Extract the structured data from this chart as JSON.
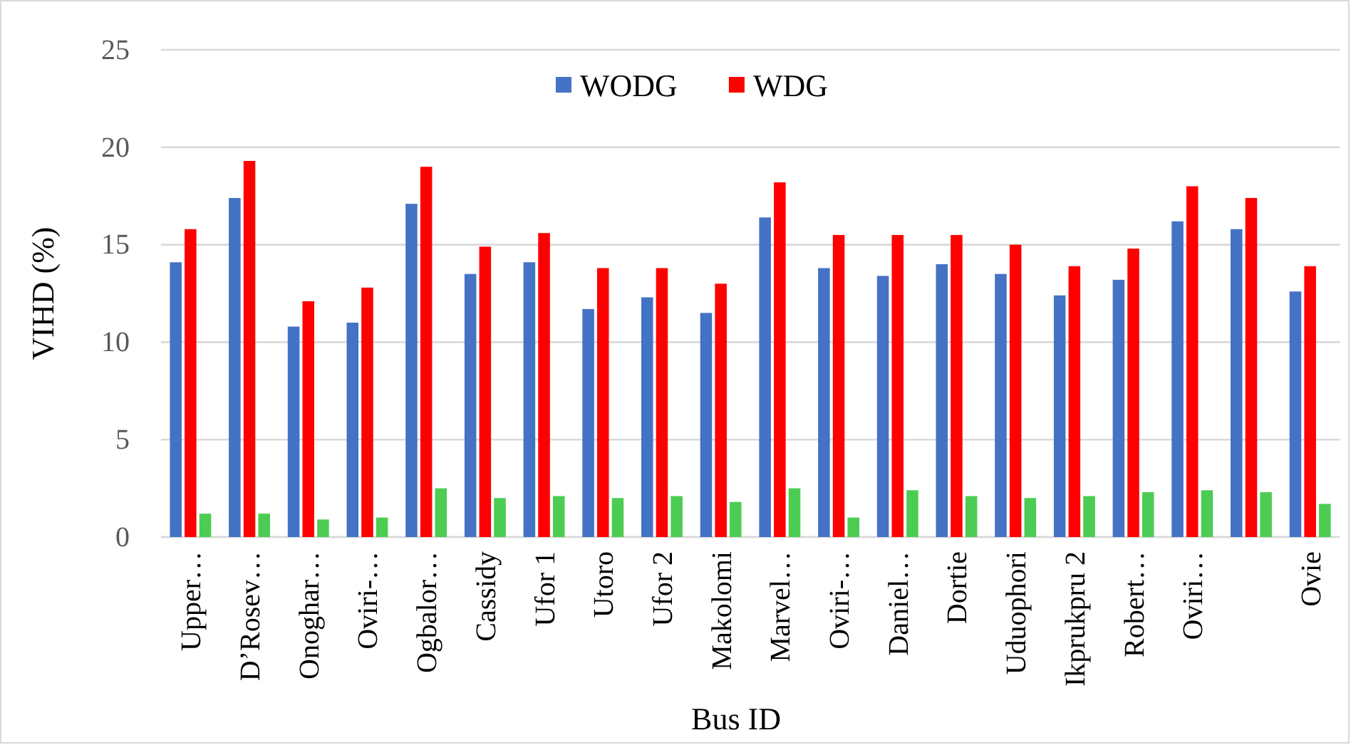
{
  "chart_data": {
    "type": "bar",
    "xlabel": "Bus ID",
    "ylabel": "VIHD (%)",
    "categories": [
      "Upper…",
      "D’Rosev…",
      "Onoghar…",
      "Oviri-…",
      "Ogbalor…",
      "Cassidy",
      "Ufor 1",
      "Utoro",
      "Ufor 2",
      "Makolomi",
      "Marvel…",
      "Oviri-…",
      "Daniel…",
      "Dortie",
      "Uduophori",
      "Ikprukpru 2",
      "Robert…",
      "Oviri…",
      null,
      "Ovie"
    ],
    "series": [
      {
        "name": "WODG",
        "color": "#4472c4",
        "values": [
          14.1,
          17.4,
          10.8,
          11.0,
          17.1,
          13.5,
          14.1,
          11.7,
          12.3,
          11.5,
          16.4,
          13.8,
          13.4,
          14.0,
          13.5,
          12.4,
          13.2,
          16.2,
          15.8,
          12.6
        ]
      },
      {
        "name": "WDG",
        "color": "#ff0000",
        "values": [
          15.8,
          19.3,
          12.1,
          12.8,
          19.0,
          14.9,
          15.6,
          13.8,
          13.8,
          13.0,
          18.2,
          15.5,
          15.5,
          15.5,
          15.0,
          13.9,
          14.8,
          18.0,
          17.4,
          13.9
        ]
      },
      {
        "color": "#4ccc52",
        "values": [
          1.2,
          1.2,
          0.9,
          1.0,
          2.5,
          2.0,
          2.1,
          2.0,
          2.1,
          1.8,
          2.5,
          1.0,
          2.4,
          2.1,
          2.0,
          2.1,
          2.3,
          2.4,
          2.3,
          1.7
        ]
      }
    ],
    "ylim": [
      0,
      25
    ],
    "yticks": [
      0,
      5,
      10,
      15,
      20,
      25
    ],
    "grid": "y",
    "legend": "top"
  }
}
